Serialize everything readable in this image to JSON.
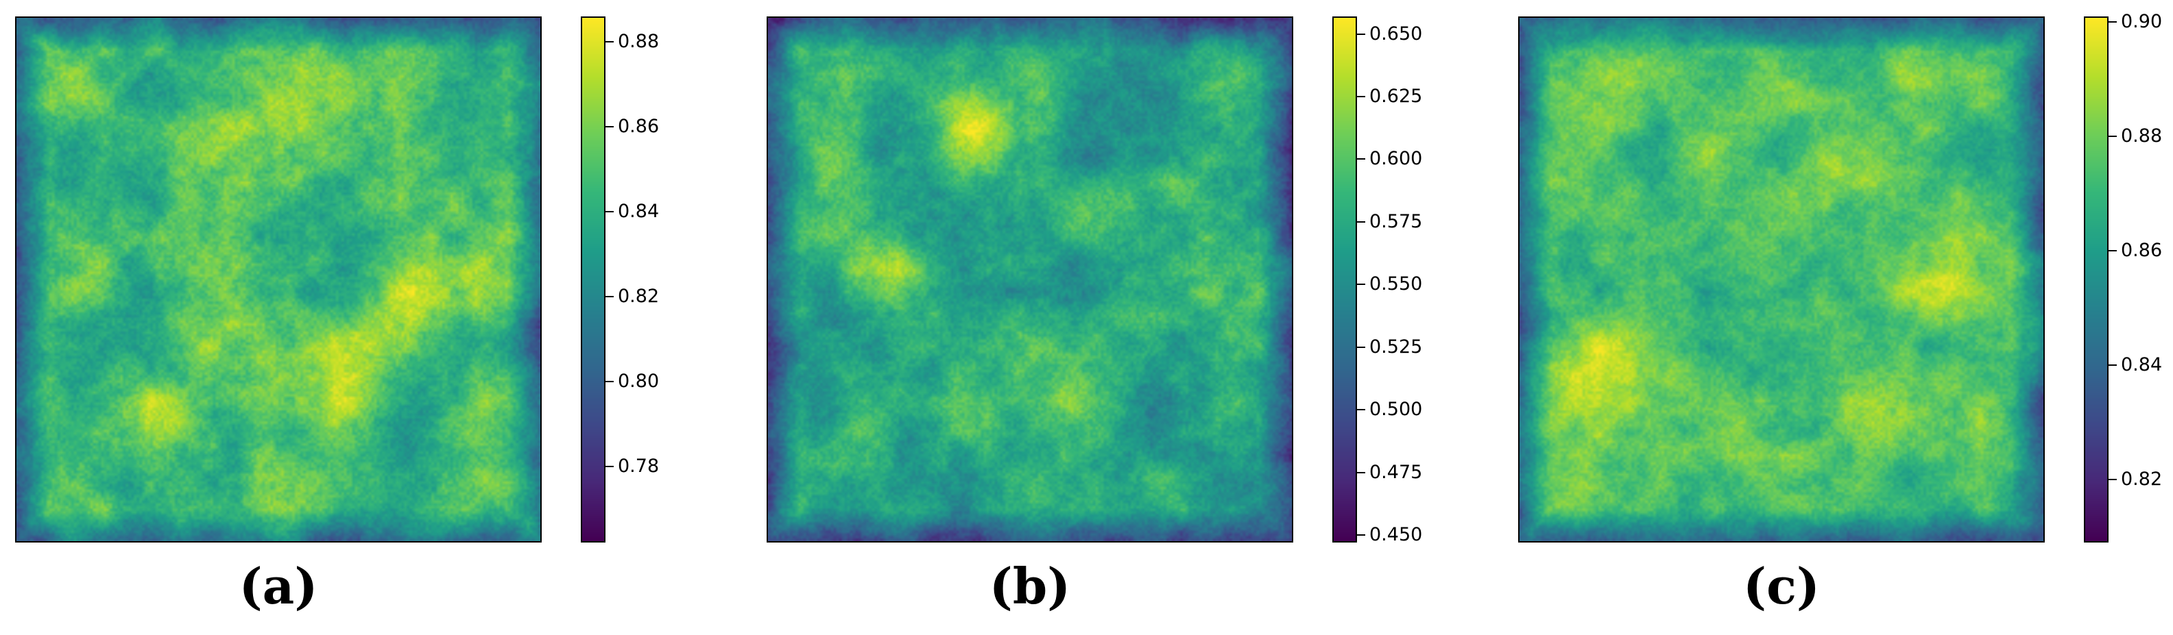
{
  "colormap": [
    "#440154",
    "#482878",
    "#3e4989",
    "#31688e",
    "#26828e",
    "#1f9e89",
    "#35b779",
    "#6ece58",
    "#b5de2b",
    "#fde725"
  ],
  "chart_data": [
    {
      "type": "heatmap",
      "caption": "(a)",
      "colorbar": {
        "vmin": 0.762,
        "vmax": 0.886,
        "ticks": [
          "0.78",
          "0.80",
          "0.82",
          "0.84",
          "0.86",
          "0.88"
        ]
      },
      "field": {
        "mean": 0.848,
        "spread": 0.018,
        "blobs": [
          [
            0.3,
            0.45,
            0.86
          ],
          [
            0.28,
            0.78,
            0.87
          ],
          [
            0.5,
            0.7,
            0.87
          ],
          [
            0.6,
            0.75,
            0.87
          ],
          [
            0.75,
            0.55,
            0.87
          ],
          [
            0.4,
            0.2,
            0.86
          ],
          [
            0.6,
            0.15,
            0.86
          ]
        ]
      }
    },
    {
      "type": "heatmap",
      "caption": "(b)",
      "colorbar": {
        "vmin": 0.447,
        "vmax": 0.657,
        "ticks": [
          "0.450",
          "0.475",
          "0.500",
          "0.525",
          "0.550",
          "0.575",
          "0.600",
          "0.625",
          "0.650"
        ]
      },
      "field": {
        "mean": 0.57,
        "spread": 0.03,
        "blobs": [
          [
            0.4,
            0.2,
            0.63
          ],
          [
            0.2,
            0.48,
            0.62
          ],
          [
            0.55,
            0.73,
            0.62
          ],
          [
            0.2,
            0.75,
            0.61
          ],
          [
            0.78,
            0.3,
            0.6
          ]
        ]
      }
    },
    {
      "type": "heatmap",
      "caption": "(c)",
      "colorbar": {
        "vmin": 0.809,
        "vmax": 0.901,
        "ticks": [
          "0.82",
          "0.84",
          "0.86",
          "0.88",
          "0.90"
        ]
      },
      "field": {
        "mean": 0.873,
        "spread": 0.012,
        "blobs": [
          [
            0.15,
            0.65,
            0.895
          ],
          [
            0.8,
            0.5,
            0.885
          ],
          [
            0.6,
            0.3,
            0.885
          ],
          [
            0.4,
            0.8,
            0.88
          ],
          [
            0.7,
            0.8,
            0.88
          ]
        ]
      }
    }
  ]
}
